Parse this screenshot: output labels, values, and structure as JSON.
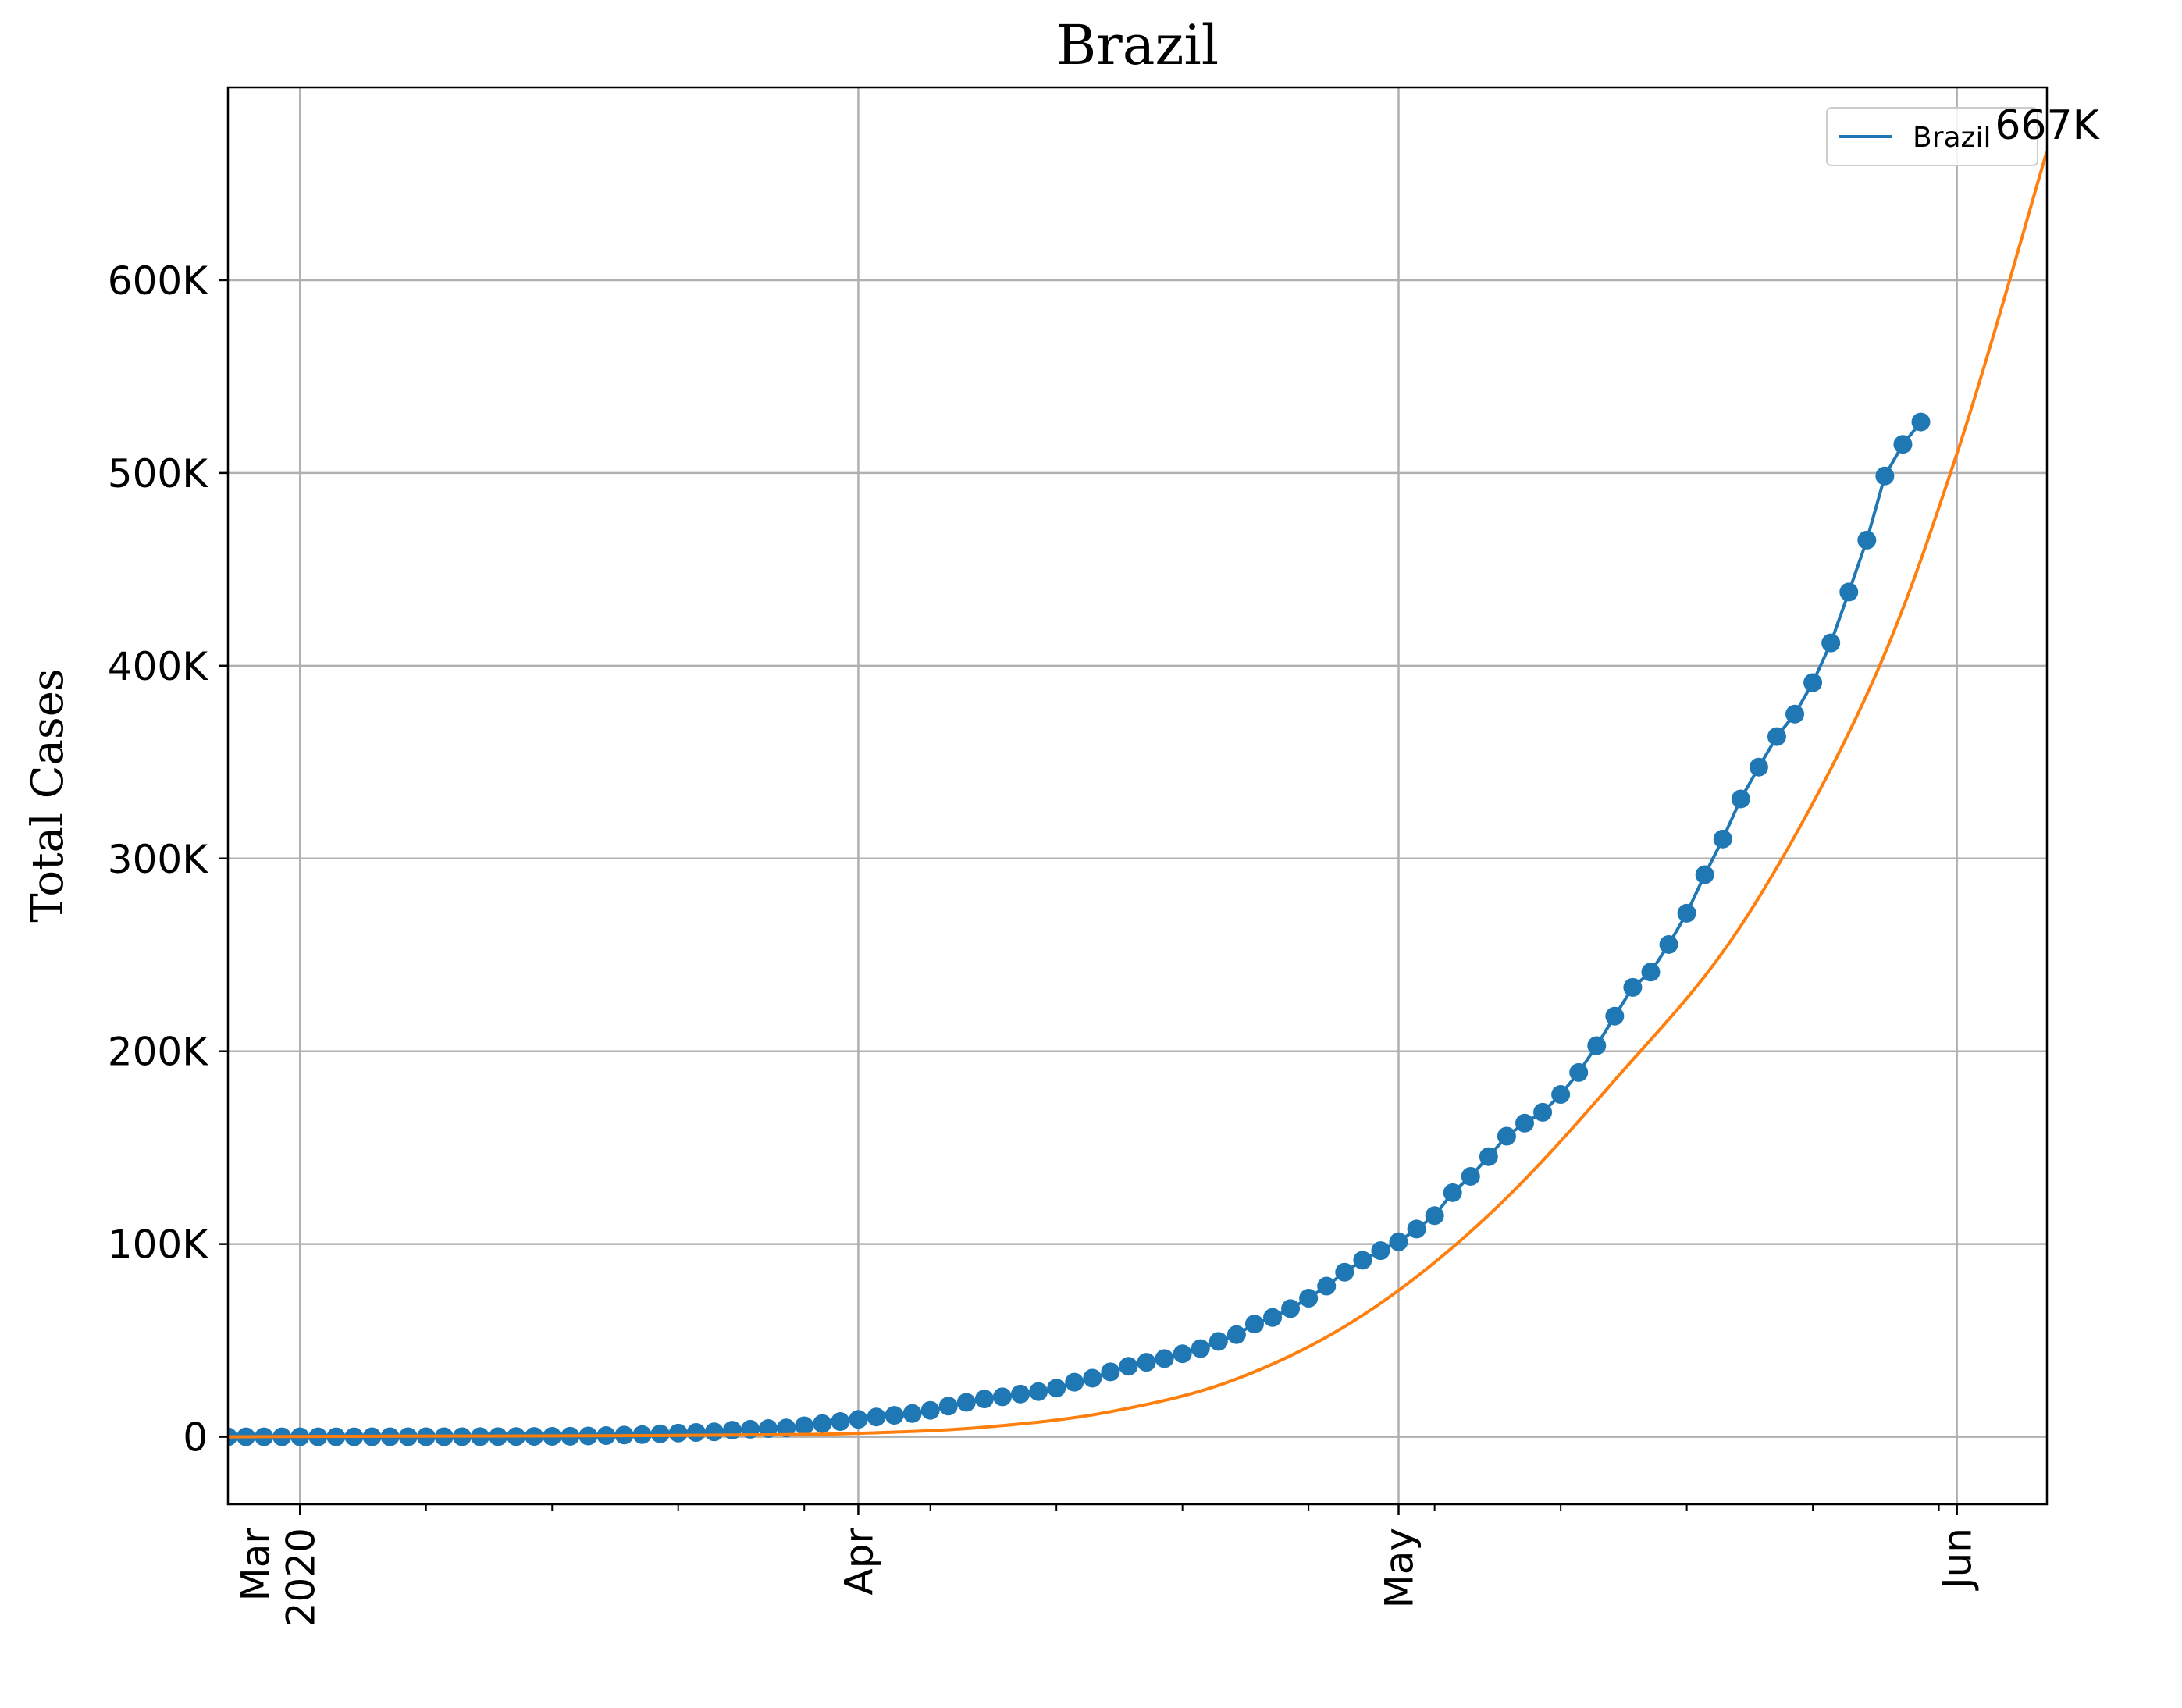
{
  "chart_data": {
    "type": "line",
    "title": "Brazil",
    "xlabel": "",
    "ylabel": "Total Cases",
    "x_axis": {
      "kind": "date",
      "range": [
        "2020-02-26",
        "2020-06-06"
      ],
      "major_ticks": [
        {
          "date": "2020-03-01",
          "label_lines": [
            "Mar",
            "2020"
          ]
        },
        {
          "date": "2020-04-01",
          "label_lines": [
            "Apr"
          ]
        },
        {
          "date": "2020-05-01",
          "label_lines": [
            "May"
          ]
        },
        {
          "date": "2020-06-01",
          "label_lines": [
            "Jun"
          ]
        }
      ],
      "minor_ticks": [
        "2020-03-08",
        "2020-03-15",
        "2020-03-22",
        "2020-03-29",
        "2020-04-05",
        "2020-04-12",
        "2020-04-19",
        "2020-04-26",
        "2020-05-03",
        "2020-05-10",
        "2020-05-17",
        "2020-05-24",
        "2020-05-31"
      ]
    },
    "y_axis": {
      "range": [
        -35000,
        700000
      ],
      "ticks": [
        {
          "value": 0,
          "label": "0"
        },
        {
          "value": 100000,
          "label": "100K"
        },
        {
          "value": 200000,
          "label": "200K"
        },
        {
          "value": 300000,
          "label": "300K"
        },
        {
          "value": 400000,
          "label": "400K"
        },
        {
          "value": 500000,
          "label": "500K"
        },
        {
          "value": 600000,
          "label": "600K"
        }
      ]
    },
    "grid": true,
    "legend": {
      "placement": "top-right",
      "entries": [
        {
          "name": "Brazil",
          "color": "#1f77b4"
        }
      ]
    },
    "series": [
      {
        "name": "Brazil",
        "color": "#1f77b4",
        "style": "line-with-markers",
        "start_date": "2020-02-26",
        "values": [
          1,
          1,
          1,
          2,
          2,
          2,
          2,
          3,
          8,
          13,
          19,
          25,
          34,
          52,
          77,
          98,
          121,
          200,
          234,
          291,
          428,
          621,
          904,
          1128,
          1546,
          1924,
          2247,
          2554,
          3417,
          3904,
          4256,
          4579,
          5717,
          6836,
          7910,
          9056,
          10278,
          11130,
          12056,
          13717,
          15927,
          17857,
          19638,
          20727,
          22169,
          23430,
          25262,
          28320,
          30425,
          33682,
          36599,
          38654,
          40581,
          43079,
          45757,
          49492,
          52995,
          58509,
          61888,
          66501,
          71886,
          78162,
          85380,
          91589,
          96559,
          101147,
          107780,
          114715,
          126611,
          135106,
          145328,
          155939,
          162699,
          168331,
          177589,
          188974,
          202918,
          218223,
          233142,
          241080,
          255368,
          271628,
          291579,
          310087,
          330890,
          347398,
          363211,
          374898,
          391222,
          411821,
          438238,
          465166,
          498440,
          514849,
          526447
        ]
      },
      {
        "name": "",
        "role": "fit",
        "color": "#ff7f0e",
        "style": "line",
        "points": [
          {
            "date": "2020-02-26",
            "value": 0
          },
          {
            "date": "2020-03-05",
            "value": 300
          },
          {
            "date": "2020-03-12",
            "value": 400
          },
          {
            "date": "2020-03-19",
            "value": 600
          },
          {
            "date": "2020-03-26",
            "value": 1000
          },
          {
            "date": "2020-04-01",
            "value": 1800
          },
          {
            "date": "2020-04-08",
            "value": 5000
          },
          {
            "date": "2020-04-15",
            "value": 13000
          },
          {
            "date": "2020-04-22",
            "value": 30000
          },
          {
            "date": "2020-04-29",
            "value": 63000
          },
          {
            "date": "2020-05-06",
            "value": 115000
          },
          {
            "date": "2020-05-13",
            "value": 185000
          },
          {
            "date": "2020-05-20",
            "value": 265000
          },
          {
            "date": "2020-05-27",
            "value": 385000
          },
          {
            "date": "2020-06-01",
            "value": 510000
          },
          {
            "date": "2020-06-06",
            "value": 667000
          }
        ]
      }
    ],
    "annotations": [
      {
        "text": "667K",
        "date": "2020-06-06",
        "value": 667000
      }
    ]
  }
}
